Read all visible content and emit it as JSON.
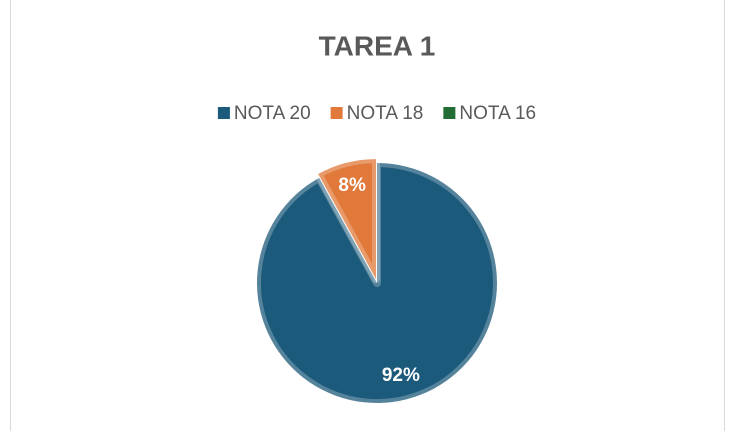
{
  "chart_data": {
    "type": "pie",
    "title": "TAREA 1",
    "categories": [
      "NOTA 20",
      "NOTA 18",
      "NOTA 16"
    ],
    "values": [
      92,
      8,
      0
    ],
    "value_labels": [
      "92%",
      "8%",
      null
    ],
    "colors": [
      "#1c5a7b",
      "#e0793a",
      "#226d33"
    ],
    "legend": "top"
  }
}
